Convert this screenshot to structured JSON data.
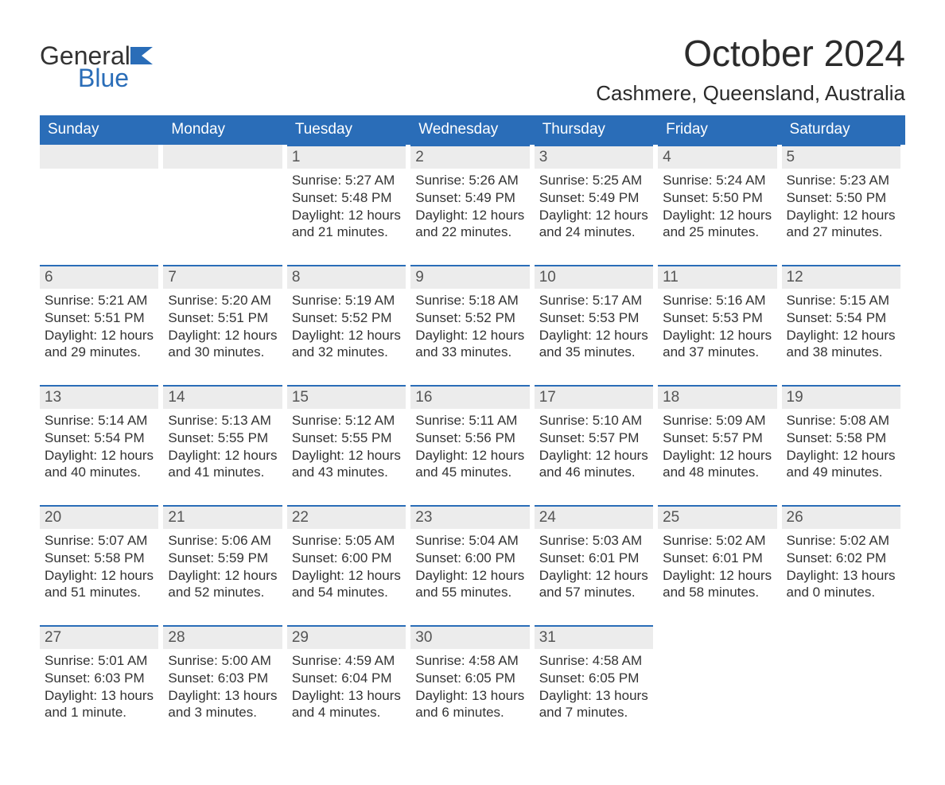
{
  "brand": {
    "word1": "General",
    "word2": "Blue",
    "flag_color": "#2a6db8"
  },
  "title": "October 2024",
  "location": "Cashmere, Queensland, Australia",
  "colors": {
    "header_bg": "#2a6db8",
    "header_text": "#ffffff",
    "band_bg": "#ececec",
    "band_border": "#2a6db8",
    "body_text": "#333333",
    "page_bg": "#ffffff"
  },
  "day_headers": [
    "Sunday",
    "Monday",
    "Tuesday",
    "Wednesday",
    "Thursday",
    "Friday",
    "Saturday"
  ],
  "weeks": [
    [
      {
        "n": "",
        "sunrise": "",
        "sunset": "",
        "daylight1": "",
        "daylight2": ""
      },
      {
        "n": "",
        "sunrise": "",
        "sunset": "",
        "daylight1": "",
        "daylight2": ""
      },
      {
        "n": "1",
        "sunrise": "Sunrise: 5:27 AM",
        "sunset": "Sunset: 5:48 PM",
        "daylight1": "Daylight: 12 hours",
        "daylight2": "and 21 minutes."
      },
      {
        "n": "2",
        "sunrise": "Sunrise: 5:26 AM",
        "sunset": "Sunset: 5:49 PM",
        "daylight1": "Daylight: 12 hours",
        "daylight2": "and 22 minutes."
      },
      {
        "n": "3",
        "sunrise": "Sunrise: 5:25 AM",
        "sunset": "Sunset: 5:49 PM",
        "daylight1": "Daylight: 12 hours",
        "daylight2": "and 24 minutes."
      },
      {
        "n": "4",
        "sunrise": "Sunrise: 5:24 AM",
        "sunset": "Sunset: 5:50 PM",
        "daylight1": "Daylight: 12 hours",
        "daylight2": "and 25 minutes."
      },
      {
        "n": "5",
        "sunrise": "Sunrise: 5:23 AM",
        "sunset": "Sunset: 5:50 PM",
        "daylight1": "Daylight: 12 hours",
        "daylight2": "and 27 minutes."
      }
    ],
    [
      {
        "n": "6",
        "sunrise": "Sunrise: 5:21 AM",
        "sunset": "Sunset: 5:51 PM",
        "daylight1": "Daylight: 12 hours",
        "daylight2": "and 29 minutes."
      },
      {
        "n": "7",
        "sunrise": "Sunrise: 5:20 AM",
        "sunset": "Sunset: 5:51 PM",
        "daylight1": "Daylight: 12 hours",
        "daylight2": "and 30 minutes."
      },
      {
        "n": "8",
        "sunrise": "Sunrise: 5:19 AM",
        "sunset": "Sunset: 5:52 PM",
        "daylight1": "Daylight: 12 hours",
        "daylight2": "and 32 minutes."
      },
      {
        "n": "9",
        "sunrise": "Sunrise: 5:18 AM",
        "sunset": "Sunset: 5:52 PM",
        "daylight1": "Daylight: 12 hours",
        "daylight2": "and 33 minutes."
      },
      {
        "n": "10",
        "sunrise": "Sunrise: 5:17 AM",
        "sunset": "Sunset: 5:53 PM",
        "daylight1": "Daylight: 12 hours",
        "daylight2": "and 35 minutes."
      },
      {
        "n": "11",
        "sunrise": "Sunrise: 5:16 AM",
        "sunset": "Sunset: 5:53 PM",
        "daylight1": "Daylight: 12 hours",
        "daylight2": "and 37 minutes."
      },
      {
        "n": "12",
        "sunrise": "Sunrise: 5:15 AM",
        "sunset": "Sunset: 5:54 PM",
        "daylight1": "Daylight: 12 hours",
        "daylight2": "and 38 minutes."
      }
    ],
    [
      {
        "n": "13",
        "sunrise": "Sunrise: 5:14 AM",
        "sunset": "Sunset: 5:54 PM",
        "daylight1": "Daylight: 12 hours",
        "daylight2": "and 40 minutes."
      },
      {
        "n": "14",
        "sunrise": "Sunrise: 5:13 AM",
        "sunset": "Sunset: 5:55 PM",
        "daylight1": "Daylight: 12 hours",
        "daylight2": "and 41 minutes."
      },
      {
        "n": "15",
        "sunrise": "Sunrise: 5:12 AM",
        "sunset": "Sunset: 5:55 PM",
        "daylight1": "Daylight: 12 hours",
        "daylight2": "and 43 minutes."
      },
      {
        "n": "16",
        "sunrise": "Sunrise: 5:11 AM",
        "sunset": "Sunset: 5:56 PM",
        "daylight1": "Daylight: 12 hours",
        "daylight2": "and 45 minutes."
      },
      {
        "n": "17",
        "sunrise": "Sunrise: 5:10 AM",
        "sunset": "Sunset: 5:57 PM",
        "daylight1": "Daylight: 12 hours",
        "daylight2": "and 46 minutes."
      },
      {
        "n": "18",
        "sunrise": "Sunrise: 5:09 AM",
        "sunset": "Sunset: 5:57 PM",
        "daylight1": "Daylight: 12 hours",
        "daylight2": "and 48 minutes."
      },
      {
        "n": "19",
        "sunrise": "Sunrise: 5:08 AM",
        "sunset": "Sunset: 5:58 PM",
        "daylight1": "Daylight: 12 hours",
        "daylight2": "and 49 minutes."
      }
    ],
    [
      {
        "n": "20",
        "sunrise": "Sunrise: 5:07 AM",
        "sunset": "Sunset: 5:58 PM",
        "daylight1": "Daylight: 12 hours",
        "daylight2": "and 51 minutes."
      },
      {
        "n": "21",
        "sunrise": "Sunrise: 5:06 AM",
        "sunset": "Sunset: 5:59 PM",
        "daylight1": "Daylight: 12 hours",
        "daylight2": "and 52 minutes."
      },
      {
        "n": "22",
        "sunrise": "Sunrise: 5:05 AM",
        "sunset": "Sunset: 6:00 PM",
        "daylight1": "Daylight: 12 hours",
        "daylight2": "and 54 minutes."
      },
      {
        "n": "23",
        "sunrise": "Sunrise: 5:04 AM",
        "sunset": "Sunset: 6:00 PM",
        "daylight1": "Daylight: 12 hours",
        "daylight2": "and 55 minutes."
      },
      {
        "n": "24",
        "sunrise": "Sunrise: 5:03 AM",
        "sunset": "Sunset: 6:01 PM",
        "daylight1": "Daylight: 12 hours",
        "daylight2": "and 57 minutes."
      },
      {
        "n": "25",
        "sunrise": "Sunrise: 5:02 AM",
        "sunset": "Sunset: 6:01 PM",
        "daylight1": "Daylight: 12 hours",
        "daylight2": "and 58 minutes."
      },
      {
        "n": "26",
        "sunrise": "Sunrise: 5:02 AM",
        "sunset": "Sunset: 6:02 PM",
        "daylight1": "Daylight: 13 hours",
        "daylight2": "and 0 minutes."
      }
    ],
    [
      {
        "n": "27",
        "sunrise": "Sunrise: 5:01 AM",
        "sunset": "Sunset: 6:03 PM",
        "daylight1": "Daylight: 13 hours",
        "daylight2": "and 1 minute."
      },
      {
        "n": "28",
        "sunrise": "Sunrise: 5:00 AM",
        "sunset": "Sunset: 6:03 PM",
        "daylight1": "Daylight: 13 hours",
        "daylight2": "and 3 minutes."
      },
      {
        "n": "29",
        "sunrise": "Sunrise: 4:59 AM",
        "sunset": "Sunset: 6:04 PM",
        "daylight1": "Daylight: 13 hours",
        "daylight2": "and 4 minutes."
      },
      {
        "n": "30",
        "sunrise": "Sunrise: 4:58 AM",
        "sunset": "Sunset: 6:05 PM",
        "daylight1": "Daylight: 13 hours",
        "daylight2": "and 6 minutes."
      },
      {
        "n": "31",
        "sunrise": "Sunrise: 4:58 AM",
        "sunset": "Sunset: 6:05 PM",
        "daylight1": "Daylight: 13 hours",
        "daylight2": "and 7 minutes."
      },
      {
        "n": "",
        "sunrise": "",
        "sunset": "",
        "daylight1": "",
        "daylight2": ""
      },
      {
        "n": "",
        "sunrise": "",
        "sunset": "",
        "daylight1": "",
        "daylight2": ""
      }
    ]
  ]
}
